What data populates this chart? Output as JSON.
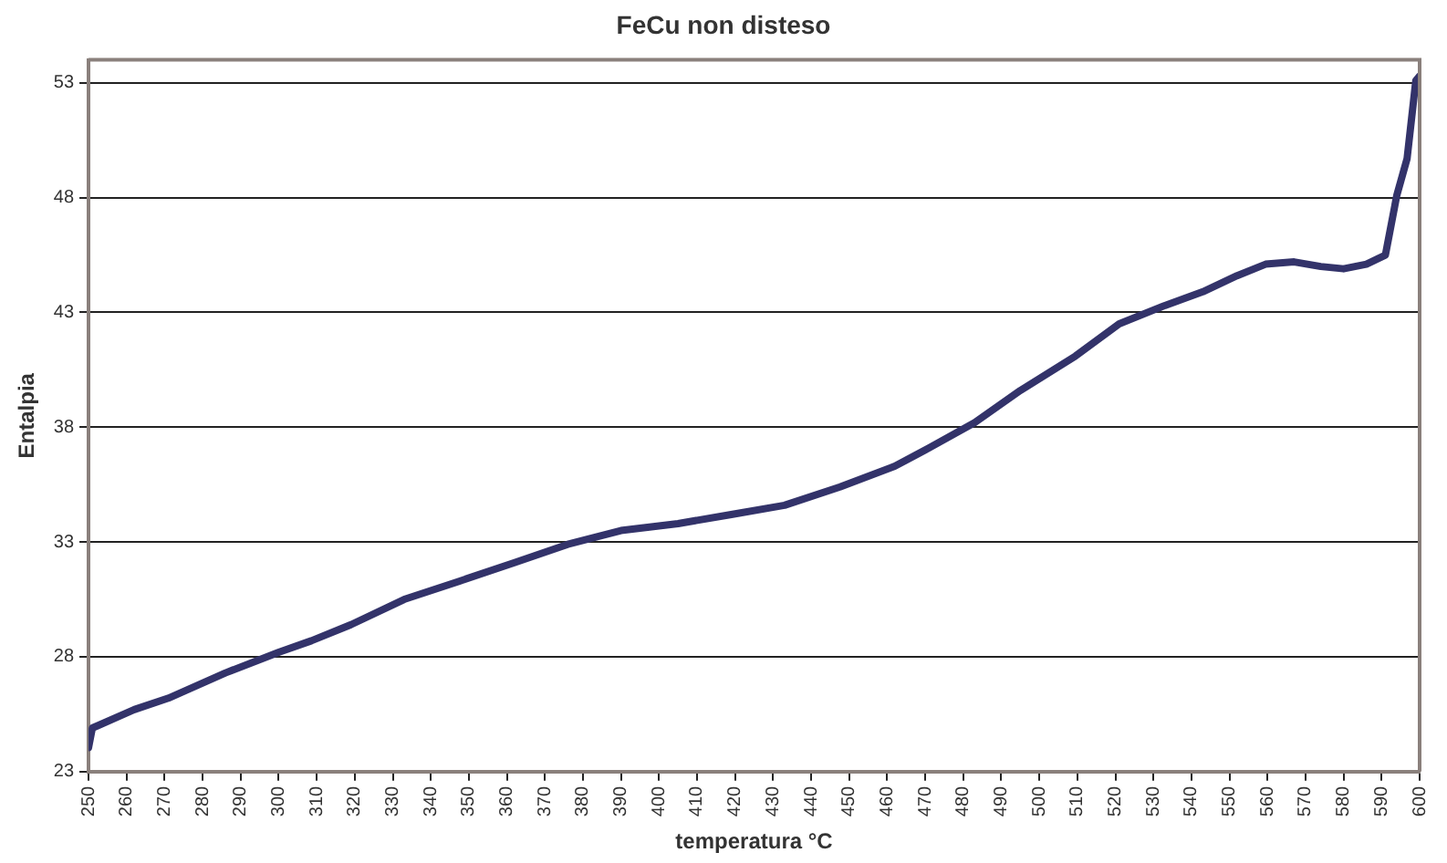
{
  "chart_data": {
    "type": "line",
    "title": "FeCu non disteso",
    "xlabel": "temperatura °C",
    "ylabel": "Entalpia",
    "x": [
      250,
      251,
      252.4,
      262,
      271,
      286,
      300,
      308.6,
      319,
      333,
      347.6,
      362,
      376,
      390,
      405,
      419,
      433,
      447.6,
      462,
      471,
      483,
      495,
      509.5,
      521,
      533,
      543,
      552,
      559.5,
      567,
      574,
      580,
      586,
      591,
      594,
      596.7,
      599,
      600
    ],
    "series": [
      {
        "color": "#33336a",
        "values": [
          24.05,
          24.9,
          25.0,
          25.7,
          26.2,
          27.3,
          28.2,
          28.7,
          29.4,
          30.5,
          31.3,
          32.1,
          32.9,
          33.5,
          33.8,
          34.2,
          34.6,
          35.4,
          36.3,
          37.1,
          38.2,
          39.6,
          41.1,
          42.5,
          43.3,
          43.9,
          44.6,
          45.1,
          45.2,
          45.0,
          44.9,
          45.1,
          45.5,
          48.1,
          49.7,
          53.1,
          53.3
        ]
      }
    ],
    "xlim": [
      250,
      600
    ],
    "xticks": [
      250,
      260,
      270,
      280,
      290,
      300,
      310,
      320,
      330,
      340,
      350,
      360,
      370,
      380,
      390,
      400,
      410,
      420,
      430,
      440,
      450,
      460,
      470,
      480,
      490,
      500,
      510,
      520,
      530,
      540,
      550,
      560,
      570,
      580,
      590,
      600
    ],
    "ylim": [
      23,
      54
    ],
    "yticks": [
      23,
      28,
      33,
      38,
      43,
      48,
      53
    ],
    "grid": "y",
    "legend": false,
    "marker": "none",
    "line_style": "solid"
  }
}
